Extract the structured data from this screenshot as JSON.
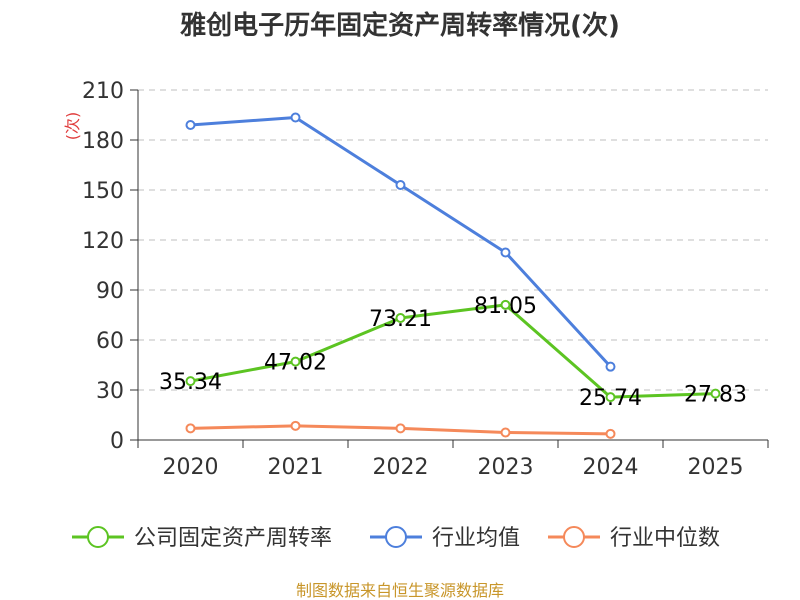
{
  "chart_data": {
    "type": "line",
    "title": "雅创电子历年固定资产周转率情况(次)",
    "ylabel": "(次)",
    "xlabel": "",
    "categories": [
      "2020",
      "2021",
      "2022",
      "2023",
      "2024",
      "2025"
    ],
    "ylim": [
      0,
      210
    ],
    "yticks": [
      0,
      30,
      60,
      90,
      120,
      150,
      180,
      210
    ],
    "grid": true,
    "legend_position": "bottom",
    "series": [
      {
        "name": "公司固定资产周转率",
        "color": "#5cc422",
        "values": [
          35.34,
          47.02,
          73.21,
          81.05,
          25.74,
          27.83
        ],
        "labels": [
          "35.34",
          "47.02",
          "73.21",
          "81.05",
          "25.74",
          "27.83"
        ]
      },
      {
        "name": "行业均值",
        "color": "#4d7fdc",
        "values": [
          189,
          193.5,
          153,
          112.5,
          44,
          null
        ]
      },
      {
        "name": "行业中位数",
        "color": "#f5895a",
        "values": [
          7,
          8.5,
          7,
          4.5,
          3.7,
          null
        ]
      }
    ]
  },
  "footer": {
    "source": "制图数据来自恒生聚源数据库"
  }
}
